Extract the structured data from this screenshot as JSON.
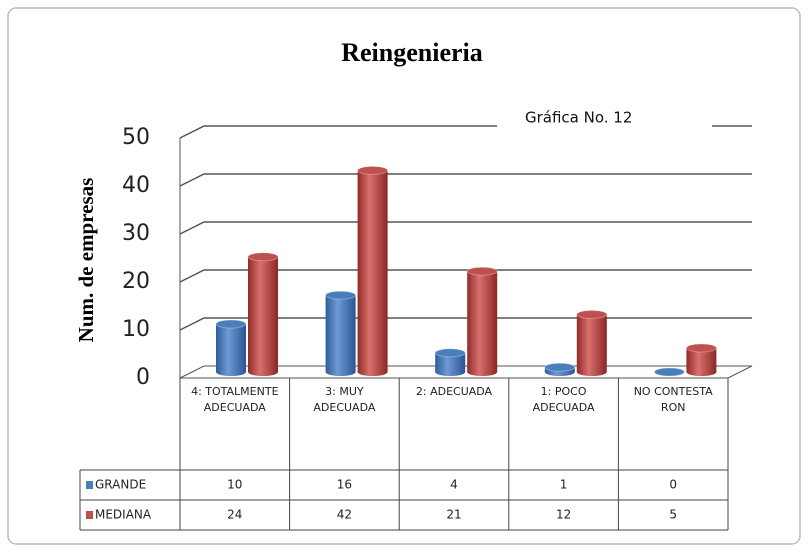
{
  "chart_data": {
    "type": "bar",
    "title": "Reingenieria",
    "y_label": "Num. de empresas",
    "annotation": "Gráfica No. 12",
    "categories": [
      "4: TOTALMENTE ADECUADA",
      "3: MUY ADECUADA",
      "2: ADECUADA",
      "1: POCO ADECUADA",
      "NO CONTESTA RON"
    ],
    "series": [
      {
        "name": "GRANDE",
        "color": "#4a7ebb",
        "values": [
          10,
          16,
          4,
          1,
          0
        ]
      },
      {
        "name": "MEDIANA",
        "color": "#c0504d",
        "values": [
          24,
          42,
          21,
          12,
          5
        ]
      }
    ],
    "ylim": [
      0,
      50
    ],
    "yticks": [
      0,
      10,
      20,
      30,
      40,
      50
    ],
    "grid": true,
    "data_table": true
  }
}
